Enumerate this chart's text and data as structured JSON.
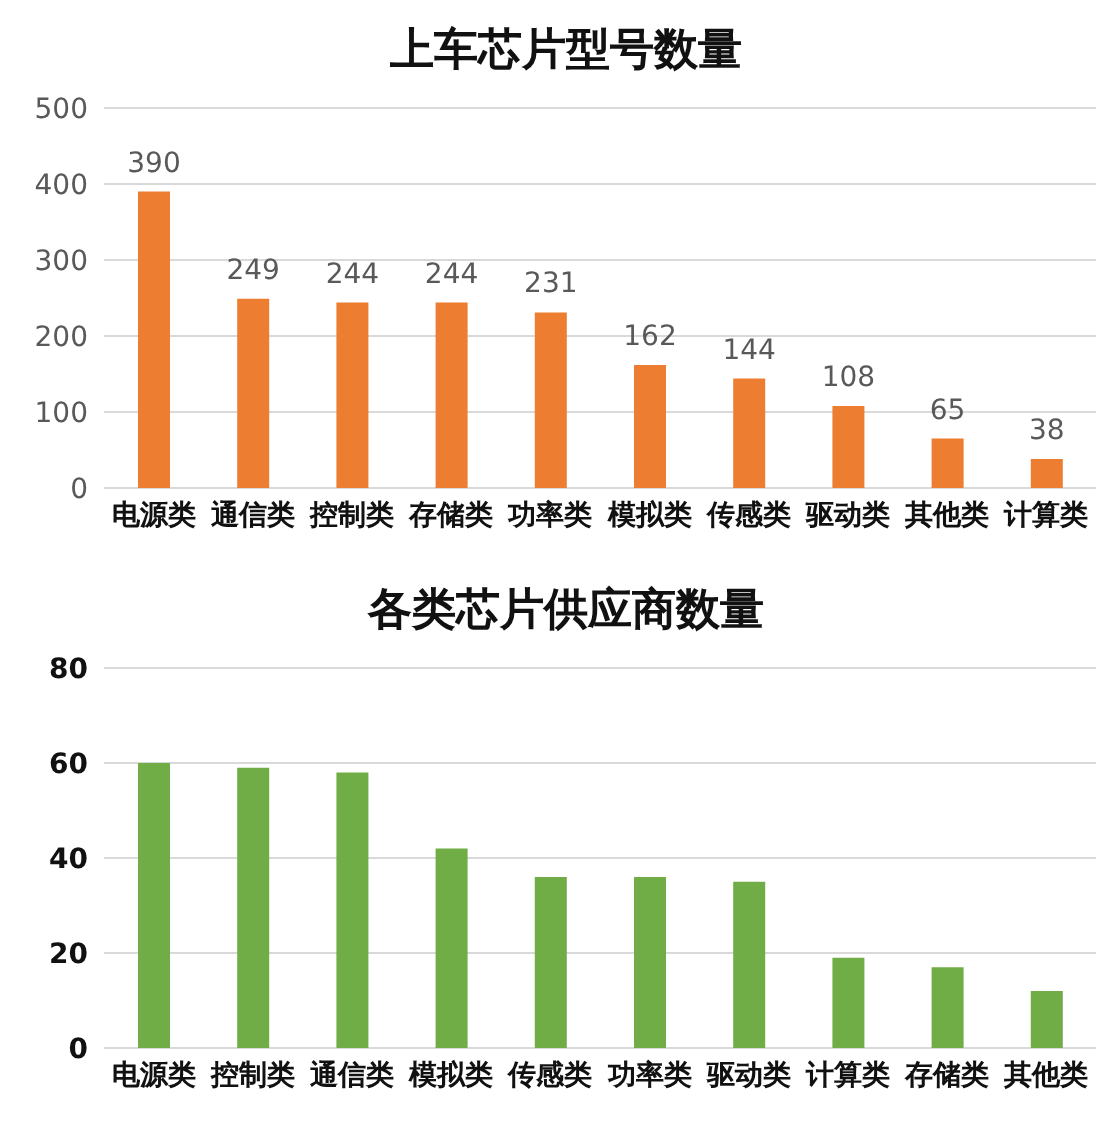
{
  "chart_data": [
    {
      "type": "bar",
      "title": "上车芯片型号数量",
      "categories": [
        "电源类",
        "通信类",
        "控制类",
        "存储类",
        "功率类",
        "模拟类",
        "传感类",
        "驱动类",
        "其他类",
        "计算类"
      ],
      "values": [
        390,
        249,
        244,
        244,
        231,
        162,
        144,
        108,
        65,
        38
      ],
      "color": "#ed7d31",
      "ylim": [
        0,
        500
      ],
      "yticks": [
        0,
        100,
        200,
        300,
        400,
        500
      ],
      "grid": "y",
      "data_labels": true
    },
    {
      "type": "bar",
      "title": "各类芯片供应商数量",
      "categories": [
        "电源类",
        "控制类",
        "通信类",
        "模拟类",
        "传感类",
        "功率类",
        "驱动类",
        "计算类",
        "存储类",
        "其他类"
      ],
      "values": [
        60,
        59,
        58,
        42,
        36,
        36,
        35,
        19,
        17,
        12
      ],
      "color": "#70ad47",
      "ylim": [
        0,
        80
      ],
      "yticks": [
        0,
        20,
        40,
        60,
        80
      ],
      "grid": "y"
    }
  ]
}
